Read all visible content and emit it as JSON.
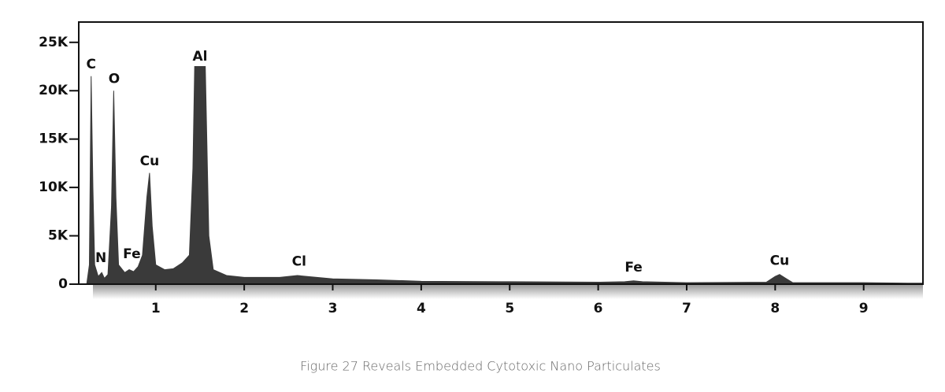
{
  "chart_data": {
    "type": "area",
    "caption": "Figure 27 Reveals Embedded Cytotoxic Nano Particulates",
    "color": "#3a3a3a",
    "x": [
      0.22,
      0.25,
      0.27,
      0.29,
      0.31,
      0.35,
      0.39,
      0.42,
      0.46,
      0.5,
      0.525,
      0.55,
      0.58,
      0.65,
      0.7,
      0.75,
      0.8,
      0.85,
      0.9,
      0.93,
      0.96,
      1.0,
      1.1,
      1.2,
      1.3,
      1.38,
      1.42,
      1.44,
      1.56,
      1.6,
      1.65,
      1.8,
      2.0,
      2.4,
      2.6,
      2.7,
      3.0,
      3.5,
      4.0,
      5.0,
      6.0,
      6.3,
      6.4,
      6.5,
      7.0,
      7.9,
      8.0,
      8.05,
      8.12,
      8.2,
      9.0,
      9.5,
      9.67
    ],
    "values": [
      0,
      2000,
      21500,
      10000,
      2000,
      800,
      1200,
      600,
      1000,
      8000,
      20000,
      9000,
      2000,
      1200,
      1500,
      1300,
      1800,
      3000,
      9000,
      11500,
      6000,
      2000,
      1500,
      1600,
      2200,
      3000,
      12000,
      22500,
      22500,
      5000,
      1500,
      900,
      700,
      700,
      900,
      800,
      550,
      450,
      300,
      250,
      200,
      250,
      350,
      250,
      150,
      200,
      800,
      1000,
      600,
      150,
      150,
      100,
      100
    ],
    "xlim": [
      0.13,
      9.67
    ],
    "ylim": [
      0,
      27100
    ],
    "xticks": [
      1,
      2,
      3,
      4,
      5,
      6,
      7,
      8,
      9
    ],
    "yticks": [
      0,
      {
        "value": 5000,
        "label": "5K"
      },
      {
        "value": 10000,
        "label": "10K"
      },
      {
        "value": 15000,
        "label": "15K"
      },
      {
        "value": 20000,
        "label": "20K"
      },
      {
        "value": 25000,
        "label": "25K"
      }
    ],
    "annotations": [
      {
        "text": "C",
        "x": 0.27,
        "y": 22700
      },
      {
        "text": "O",
        "x": 0.53,
        "y": 21200
      },
      {
        "text": "Al",
        "x": 1.5,
        "y": 23500
      },
      {
        "text": "Cu",
        "x": 0.93,
        "y": 12700
      },
      {
        "text": "N",
        "x": 0.38,
        "y": 2700
      },
      {
        "text": "Fe",
        "x": 0.73,
        "y": 3100
      },
      {
        "text": "Cl",
        "x": 2.62,
        "y": 2300
      },
      {
        "text": "Fe",
        "x": 6.4,
        "y": 1700
      },
      {
        "text": "Cu",
        "x": 8.05,
        "y": 2400
      }
    ]
  }
}
